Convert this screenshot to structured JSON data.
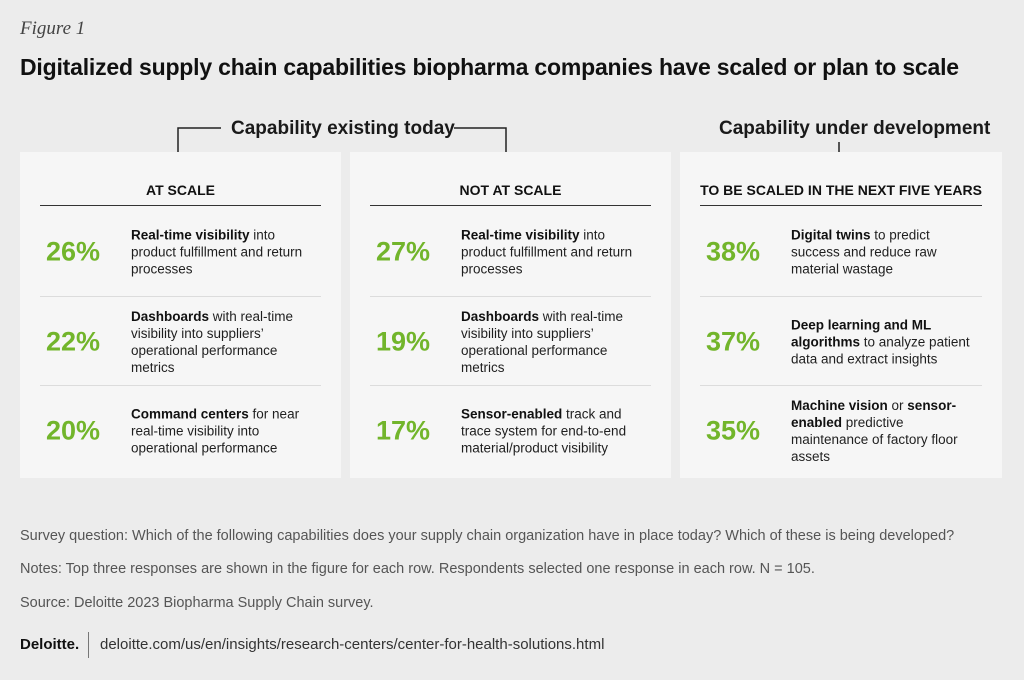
{
  "figure_label": "Figure 1",
  "title": "Digitalized supply chain capabilities biopharma companies have scaled or plan to scale",
  "chart_data": {
    "type": "table",
    "title": "Digitalized supply chain capabilities biopharma companies have scaled or plan to scale",
    "groups": [
      {
        "label": "Capability existing today",
        "columns": [
          0,
          1
        ]
      },
      {
        "label": "Capability under development",
        "columns": [
          2
        ]
      }
    ],
    "columns": [
      {
        "header": "AT SCALE",
        "rows": [
          {
            "value": "26%",
            "bold": "Real-time visibility",
            "rest": " into product fulfillment and return processes"
          },
          {
            "value": "22%",
            "bold": "Dashboards",
            "rest": " with real-time visibility into suppliers’ operational performance metrics"
          },
          {
            "value": "20%",
            "bold": "Command centers",
            "rest": " for near real-time visibility into operational performance"
          }
        ]
      },
      {
        "header": "NOT AT SCALE",
        "rows": [
          {
            "value": "27%",
            "bold": "Real-time visibility",
            "rest": " into product fulfillment and return processes"
          },
          {
            "value": "19%",
            "bold": "Dashboards",
            "rest": " with real-time visibility into suppliers’ operational performance metrics"
          },
          {
            "value": "17%",
            "bold": "Sensor-enabled",
            "rest": " track and trace system for end-to-end material/product visibility"
          }
        ]
      },
      {
        "header": "TO BE SCALED IN THE NEXT FIVE YEARS",
        "rows": [
          {
            "value": "38%",
            "bold": "Digital twins",
            "rest": " to predict success and reduce raw material wastage"
          },
          {
            "value": "37%",
            "bold": "Deep learning and ML algorithms",
            "rest": " to analyze patient data and extract insights"
          },
          {
            "value": "35%",
            "bold": "Machine vision",
            "mid": " or ",
            "bold2": "sensor-enabled",
            "rest": " predictive maintenance of factory floor assets"
          }
        ]
      }
    ]
  },
  "notes": {
    "survey_question": "Survey question: Which of the following capabilities does your supply chain organization have in place today? Which of these is being developed?",
    "notes": "Notes: Top three responses are shown in the figure for each row. Respondents selected one response in each row. N = 105.",
    "source": "Source: Deloitte 2023 Biopharma Supply Chain survey."
  },
  "footer": {
    "brand": "Deloitte.",
    "link": "deloitte.com/us/en/insights/research-centers/center-for-health-solutions.html"
  },
  "colors": {
    "accent_green": "#72b52b",
    "panel_bg": "#f6f6f6",
    "page_bg": "#ececec"
  }
}
